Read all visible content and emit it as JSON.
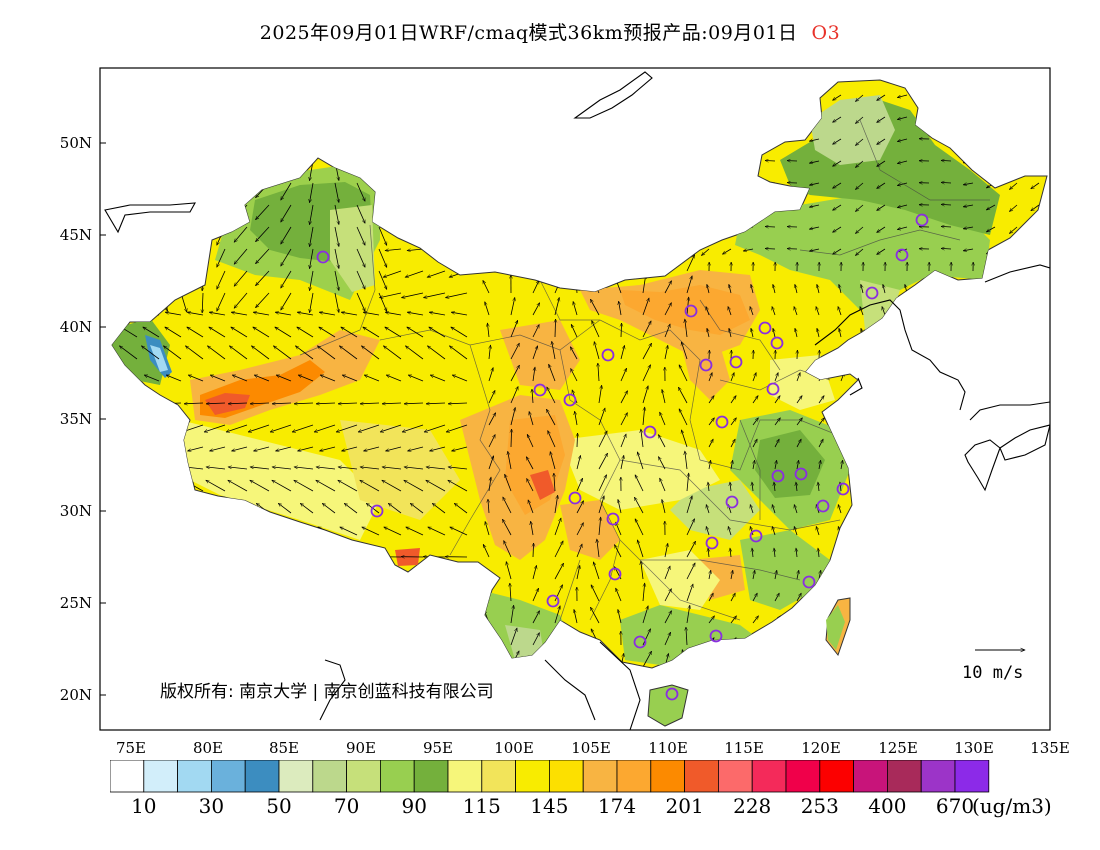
{
  "title": {
    "main": "2025年09月01日WRF/cmaq模式36km预报产品:09月01日",
    "species": "O3",
    "species_color": "#e8322a"
  },
  "axes": {
    "lon_labels": [
      "75E",
      "80E",
      "85E",
      "90E",
      "95E",
      "100E",
      "105E",
      "110E",
      "115E",
      "120E",
      "125E",
      "130E",
      "135E"
    ],
    "lat_labels": [
      "20N",
      "25N",
      "30N",
      "35N",
      "40N",
      "45N",
      "50N"
    ]
  },
  "copyright": "版权所有: 南京大学 | 南京创蓝科技有限公司",
  "wind_reference": "10 m/s",
  "legend": {
    "colors": [
      "#ffffff",
      "#d2eefa",
      "#a2d9f2",
      "#6ab1dc",
      "#3c8dc0",
      "#dcebbe",
      "#bcd88c",
      "#c6e07a",
      "#98cf50",
      "#74b03c",
      "#f6f67a",
      "#f2e45a",
      "#f8ec00",
      "#fce000",
      "#f8b442",
      "#fca830",
      "#fc8a00",
      "#f05a2a",
      "#fc6a6a",
      "#f42a5a",
      "#f0004a",
      "#fc0000",
      "#c8147a",
      "#a82a5a",
      "#9c34c8",
      "#8c2ae8"
    ],
    "labels": [
      "10",
      "30",
      "50",
      "70",
      "90",
      "115",
      "145",
      "174",
      "201",
      "228",
      "253",
      "400",
      "670"
    ],
    "unit": "(ug/m3)"
  }
}
